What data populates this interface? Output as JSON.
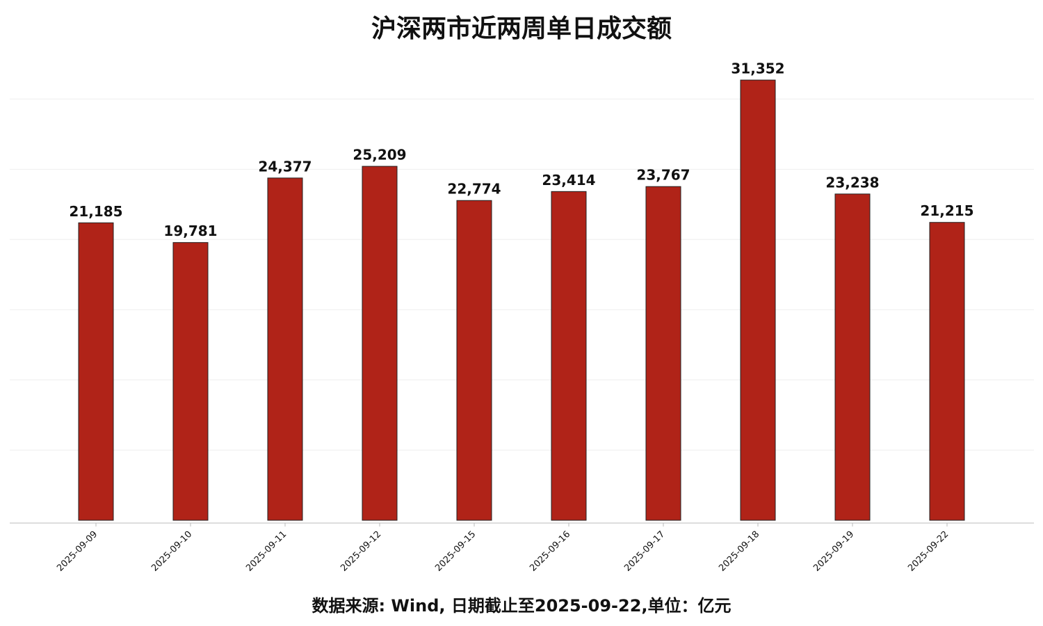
{
  "chart_data": {
    "type": "bar",
    "title": "沪深两市近两周单日成交额",
    "note": "数据来源: Wind, 日期截止至2025-09-22,单位：亿元",
    "categories": [
      "2025-09-09",
      "2025-09-10",
      "2025-09-11",
      "2025-09-12",
      "2025-09-15",
      "2025-09-16",
      "2025-09-17",
      "2025-09-18",
      "2025-09-19",
      "2025-09-22"
    ],
    "values": [
      21185,
      19781,
      24377,
      25209,
      22774,
      23414,
      23767,
      31352,
      23238,
      21215
    ],
    "value_labels": [
      "21,185",
      "19,781",
      "24,377",
      "25,209",
      "22,774",
      "23,414",
      "23,767",
      "31,352",
      "23,238",
      "21,215"
    ],
    "color": "#b02318",
    "ylim": [
      0,
      32000
    ],
    "yticks": [
      5000,
      10000,
      15000,
      20000,
      25000,
      30000
    ],
    "grid": true
  }
}
